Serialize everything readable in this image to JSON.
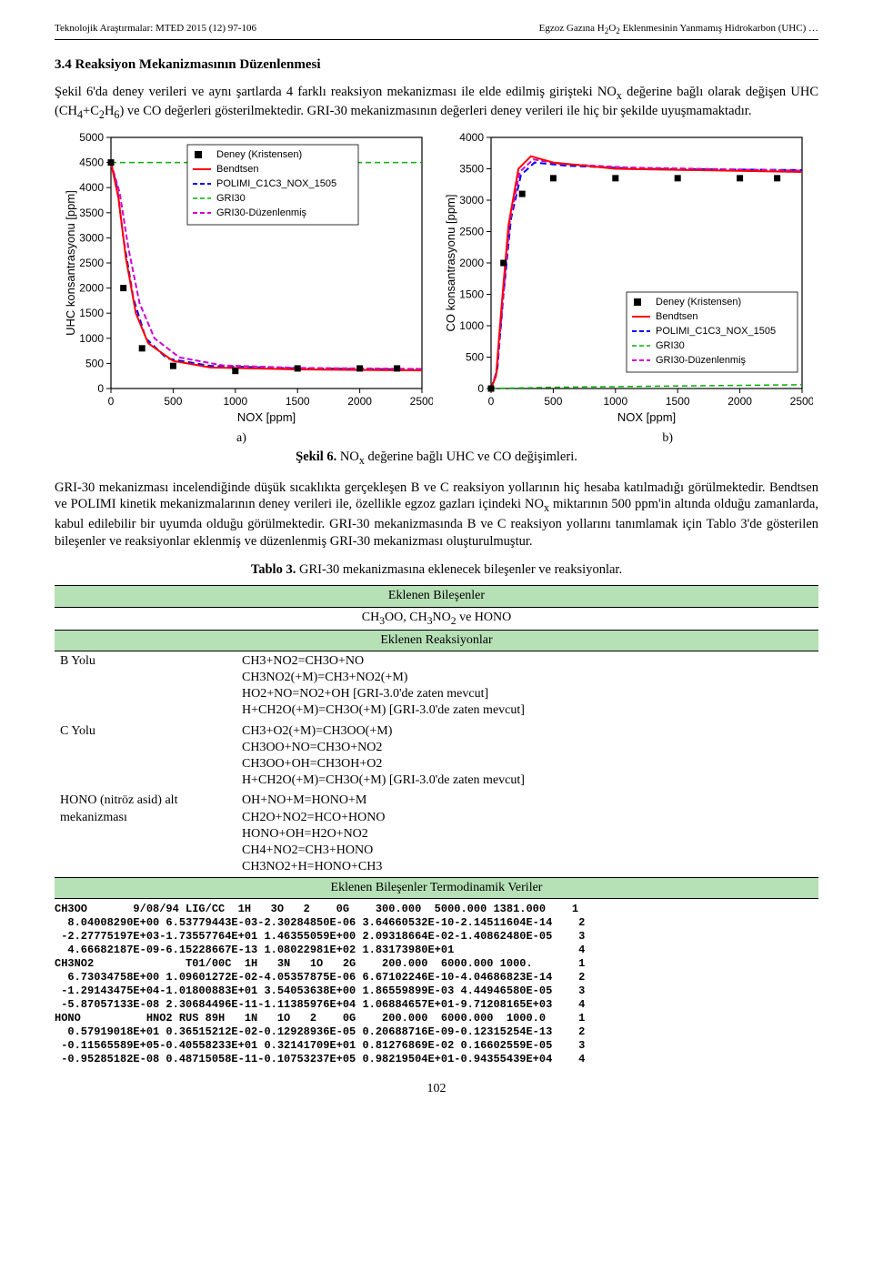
{
  "header": {
    "left": "Teknolojik Araştırmalar: MTED 2015 (12) 97-106",
    "right_pre": "Egzoz Gazına H",
    "right_sub1": "2",
    "right_mid1": "O",
    "right_sub2": "2",
    "right_post": " Eklenmesinin Yanmamış Hidrokarbon (UHC) …"
  },
  "section_title": "3.4 Reaksiyon Mekanizmasının Düzenlenmesi",
  "para1_a": "Şekil 6'da deney verileri ve aynı şartlarda 4 farklı reaksiyon mekanizması ile elde edilmiş girişteki NO",
  "para1_sub": "x",
  "para1_b": " değerine bağlı olarak değişen UHC (CH",
  "para1_c": "4",
  "para1_d": "+C",
  "para1_e": "2",
  "para1_f": "H",
  "para1_g": "6",
  "para1_h": ") ve CO değerleri gösterilmektedir. GRI-30 mekanizmasının değerleri deney verileri ile hiç bir şekilde uyuşmamaktadır.",
  "fig_label_a": "a)",
  "fig_label_b": "b)",
  "fig6_caption_b": "Şekil 6.",
  "fig6_caption_t": " NO",
  "fig6_caption_sub": "x",
  "fig6_caption_r": " değerine bağlı UHC ve CO değişimleri.",
  "para2": "GRI-30 mekanizması incelendiğinde düşük sıcaklıkta gerçekleşen B ve C reaksiyon yollarının hiç hesaba katılmadığı görülmektedir. Bendtsen ve POLIMI kinetik mekanizmalarının deney verileri ile, özellikle egzoz gazları içindeki NO",
  "para2_sub": "x",
  "para2_b": " miktarının 500 ppm'in altında olduğu zamanlarda, kabul edilebilir bir uyumda olduğu görülmektedir. GRI-30 mekanizmasında B ve C reaksiyon yollarını tanımlamak için Tablo 3'de gösterilen bileşenler ve reaksiyonlar eklenmiş ve düzenlenmiş GRI-30 mekanizması oluşturulmuştur.",
  "table_caption_b": "Tablo 3.",
  "table_caption_t": " GRI-30 mekanizmasına eklenecek bileşenler ve reaksiyonlar.",
  "table": {
    "hdr1": "Eklenen Bileşenler",
    "comp_a": "CH",
    "comp_b": "3",
    "comp_c": "OO, CH",
    "comp_d": "3",
    "comp_e": "NO",
    "comp_f": "2",
    "comp_g": " ve HONO",
    "hdr2": "Eklenen Reaksiyonlar",
    "row_b_label": "B Yolu",
    "row_b_lines": [
      "CH3+NO2=CH3O+NO",
      "CH3NO2(+M)=CH3+NO2(+M)",
      "HO2+NO=NO2+OH [GRI-3.0'de zaten mevcut]",
      "H+CH2O(+M)=CH3O(+M) [GRI-3.0'de zaten mevcut]"
    ],
    "row_c_label": "C Yolu",
    "row_c_lines": [
      "CH3+O2(+M)=CH3OO(+M)",
      "CH3OO+NO=CH3O+NO2",
      "CH3OO+OH=CH3OH+O2",
      "H+CH2O(+M)=CH3O(+M) [GRI-3.0'de zaten mevcut]"
    ],
    "row_h_label": "HONO (nitröz asid) alt mekanizması",
    "row_h_lines": [
      "OH+NO+M=HONO+M",
      "CH2O+NO2=HCO+HONO",
      "HONO+OH=H2O+NO2",
      "CH4+NO2=CH3+HONO",
      "CH3NO2+H=HONO+CH3"
    ],
    "hdr3": "Eklenen Bileşenler Termodinamik Veriler"
  },
  "thermo_lines": [
    "CH3OO       9/08/94 LIG/CC  1H   3O   2    0G    300.000  5000.000 1381.000    1",
    "  8.04008290E+00 6.53779443E-03-2.30284850E-06 3.64660532E-10-2.14511604E-14    2",
    " -2.27775197E+03-1.73557764E+01 1.46355059E+00 2.09318664E-02-1.40862480E-05    3",
    "  4.66682187E-09-6.15228667E-13 1.08022981E+02 1.83173980E+01                   4",
    "CH3NO2              T01/00C  1H   3N   1O   2G    200.000  6000.000 1000.       1",
    "  6.73034758E+00 1.09601272E-02-4.05357875E-06 6.67102246E-10-4.04686823E-14    2",
    " -1.29143475E+04-1.01800883E+01 3.54053638E+00 1.86559899E-03 4.44946580E-05    3",
    " -5.87057133E-08 2.30684496E-11-1.11385976E+04 1.06884657E+01-9.71208165E+03    4",
    "HONO          HNO2 RUS 89H   1N   1O   2    0G    200.000  6000.000  1000.0     1",
    "  0.57919018E+01 0.36515212E-02-0.12928936E-05 0.20688716E-09-0.12315254E-13    2",
    " -0.11565589E+05-0.40558233E+01 0.32141709E+01 0.81276869E-02 0.16602559E-05    3",
    " -0.95285182E-08 0.48715058E-11-0.10753237E+05 0.98219504E+01-0.94355439E+04    4"
  ],
  "chart_a": {
    "xlim": [
      0,
      2500
    ],
    "ylim": [
      0,
      5000
    ],
    "xticks": [
      0,
      500,
      1000,
      1500,
      2000,
      2500
    ],
    "yticks": [
      0,
      500,
      1000,
      1500,
      2000,
      2500,
      3000,
      3500,
      4000,
      4500,
      5000
    ],
    "xlabel": "NOX [ppm]",
    "ylabel": "UHC konsantrasyonu [ppm]",
    "legend_items": [
      {
        "label": "Deney (Kristensen)",
        "marker": "square",
        "color": "#000000"
      },
      {
        "label": "Bendtsen",
        "style": "solid",
        "color": "#ff0000",
        "lw": 2
      },
      {
        "label": "POLIMI_C1C3_NOX_1505",
        "style": "dash",
        "color": "#0000ff",
        "lw": 2
      },
      {
        "label": "GRI30",
        "style": "dash",
        "color": "#00b000",
        "lw": 1.5
      },
      {
        "label": "GRI30-Düzenlenmiş",
        "style": "dash",
        "color": "#d000d0",
        "lw": 2
      }
    ],
    "deney": [
      [
        0,
        4500
      ],
      [
        100,
        2000
      ],
      [
        250,
        800
      ],
      [
        500,
        450
      ],
      [
        1000,
        350
      ],
      [
        1500,
        400
      ],
      [
        2000,
        400
      ],
      [
        2300,
        400
      ]
    ],
    "bendtsen": [
      [
        0,
        4500
      ],
      [
        60,
        3800
      ],
      [
        120,
        2600
      ],
      [
        200,
        1500
      ],
      [
        300,
        900
      ],
      [
        500,
        550
      ],
      [
        800,
        420
      ],
      [
        1500,
        380
      ],
      [
        2500,
        360
      ]
    ],
    "polimi": [
      [
        0,
        4500
      ],
      [
        50,
        4000
      ],
      [
        100,
        3000
      ],
      [
        180,
        1800
      ],
      [
        280,
        1000
      ],
      [
        450,
        600
      ],
      [
        800,
        450
      ],
      [
        1500,
        400
      ],
      [
        2500,
        380
      ]
    ],
    "gri30": [
      [
        0,
        4500
      ],
      [
        500,
        4500
      ],
      [
        1500,
        4500
      ],
      [
        2500,
        4500
      ]
    ],
    "gri30d": [
      [
        0,
        4500
      ],
      [
        70,
        3900
      ],
      [
        140,
        2800
      ],
      [
        230,
        1700
      ],
      [
        350,
        1000
      ],
      [
        550,
        620
      ],
      [
        900,
        460
      ],
      [
        1500,
        410
      ],
      [
        2500,
        390
      ]
    ]
  },
  "chart_b": {
    "xlim": [
      0,
      2500
    ],
    "ylim": [
      0,
      4000
    ],
    "xticks": [
      0,
      500,
      1000,
      1500,
      2000,
      2500
    ],
    "yticks": [
      0,
      500,
      1000,
      1500,
      2000,
      2500,
      3000,
      3500,
      4000
    ],
    "xlabel": "NOX [ppm]",
    "ylabel": "CO konsantrasyonu [ppm]",
    "legend_items": [
      {
        "label": "Deney (Kristensen)",
        "marker": "square",
        "color": "#000000"
      },
      {
        "label": "Bendtsen",
        "style": "solid",
        "color": "#ff0000",
        "lw": 2
      },
      {
        "label": "POLIMI_C1C3_NOX_1505",
        "style": "dash",
        "color": "#0000ff",
        "lw": 2
      },
      {
        "label": "GRI30",
        "style": "dash",
        "color": "#00b000",
        "lw": 1.5
      },
      {
        "label": "GRI30-Düzenlenmiş",
        "style": "dash",
        "color": "#d000d0",
        "lw": 2
      }
    ],
    "deney": [
      [
        0,
        0
      ],
      [
        100,
        2000
      ],
      [
        250,
        3100
      ],
      [
        500,
        3350
      ],
      [
        1000,
        3350
      ],
      [
        1500,
        3350
      ],
      [
        2000,
        3350
      ],
      [
        2300,
        3350
      ]
    ],
    "bendtsen": [
      [
        0,
        0
      ],
      [
        40,
        200
      ],
      [
        80,
        1200
      ],
      [
        140,
        2600
      ],
      [
        220,
        3500
      ],
      [
        320,
        3700
      ],
      [
        500,
        3600
      ],
      [
        1000,
        3500
      ],
      [
        2500,
        3450
      ]
    ],
    "polimi": [
      [
        0,
        0
      ],
      [
        50,
        300
      ],
      [
        100,
        1500
      ],
      [
        160,
        2700
      ],
      [
        240,
        3400
      ],
      [
        350,
        3600
      ],
      [
        600,
        3550
      ],
      [
        1200,
        3500
      ],
      [
        2500,
        3480
      ]
    ],
    "gri30": [
      [
        0,
        0
      ],
      [
        500,
        20
      ],
      [
        1500,
        40
      ],
      [
        2500,
        60
      ]
    ],
    "gri30d": [
      [
        0,
        0
      ],
      [
        45,
        250
      ],
      [
        90,
        1300
      ],
      [
        150,
        2650
      ],
      [
        230,
        3450
      ],
      [
        340,
        3650
      ],
      [
        550,
        3580
      ],
      [
        1100,
        3520
      ],
      [
        2500,
        3470
      ]
    ]
  },
  "page_num": "102"
}
